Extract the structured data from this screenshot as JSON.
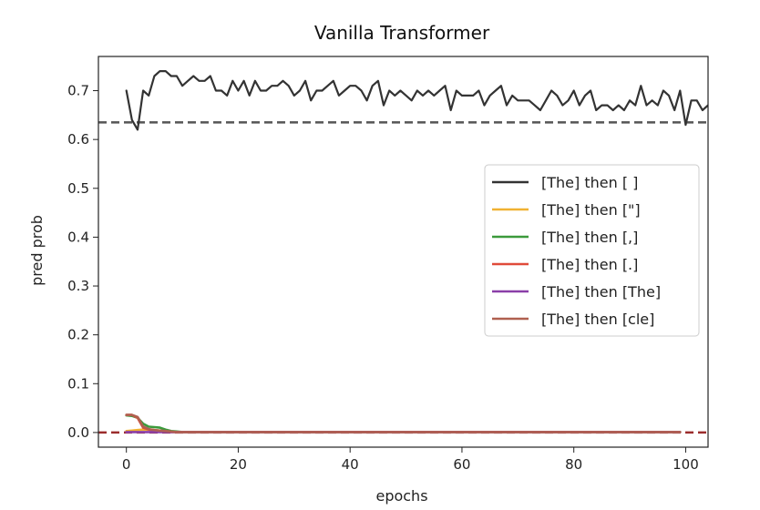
{
  "chart_data": {
    "type": "line",
    "title": "Vanilla Transformer",
    "xlabel": "epochs",
    "ylabel": "pred prob",
    "xlim": [
      -5,
      104
    ],
    "ylim": [
      -0.03,
      0.77
    ],
    "xticks": [
      0,
      20,
      40,
      60,
      80,
      100
    ],
    "yticks": [
      0.0,
      0.1,
      0.2,
      0.3,
      0.4,
      0.5,
      0.6,
      0.7
    ],
    "ytick_labels": [
      "0.0",
      "0.1",
      "0.2",
      "0.3",
      "0.4",
      "0.5",
      "0.6",
      "0.7"
    ],
    "grid": false,
    "legend_position": "center-right",
    "hlines": [
      {
        "y": 0.635,
        "color": "#555555",
        "style": "dashed"
      },
      {
        "y": 0.0,
        "color": "#9b2d2d",
        "style": "dashed"
      }
    ],
    "series": [
      {
        "name": "[The] then [ ]",
        "color": "#333333",
        "y": [
          0.7,
          0.64,
          0.62,
          0.7,
          0.69,
          0.73,
          0.74,
          0.74,
          0.73,
          0.73,
          0.71,
          0.72,
          0.73,
          0.72,
          0.72,
          0.73,
          0.7,
          0.7,
          0.69,
          0.72,
          0.7,
          0.72,
          0.69,
          0.72,
          0.7,
          0.7,
          0.71,
          0.71,
          0.72,
          0.71,
          0.69,
          0.7,
          0.72,
          0.68,
          0.7,
          0.7,
          0.71,
          0.72,
          0.69,
          0.7,
          0.71,
          0.71,
          0.7,
          0.68,
          0.71,
          0.72,
          0.67,
          0.7,
          0.69,
          0.7,
          0.69,
          0.68,
          0.7,
          0.69,
          0.7,
          0.69,
          0.7,
          0.71,
          0.66,
          0.7,
          0.69,
          0.69,
          0.69,
          0.7,
          0.67,
          0.69,
          0.7,
          0.71,
          0.67,
          0.69,
          0.68,
          0.68,
          0.68,
          0.67,
          0.66,
          0.68,
          0.7,
          0.69,
          0.67,
          0.68,
          0.7,
          0.67,
          0.69,
          0.7,
          0.66,
          0.67,
          0.67,
          0.66,
          0.67,
          0.66,
          0.68,
          0.67,
          0.71,
          0.67,
          0.68,
          0.67,
          0.7,
          0.69,
          0.66,
          0.7,
          0.63,
          0.68,
          0.68,
          0.66,
          0.67
        ]
      },
      {
        "name": "[The] then [\"]",
        "color": "#f0b232",
        "y": [
          0.003,
          0.004,
          0.005,
          0.006,
          0.006,
          0.005,
          0.004,
          0.003,
          0.002,
          0.001,
          0.001
        ]
      },
      {
        "name": "[The] then [,]",
        "color": "#3c9a3c",
        "y": [
          0.035,
          0.034,
          0.03,
          0.018,
          0.012,
          0.011,
          0.01,
          0.006,
          0.003,
          0.002,
          0.001,
          0.001
        ]
      },
      {
        "name": "[The] then [.]",
        "color": "#e04b3a",
        "y": [
          0.036,
          0.036,
          0.03,
          0.01,
          0.006,
          0.004,
          0.003,
          0.002,
          0.001,
          0.001
        ]
      },
      {
        "name": "[The] then [The]",
        "color": "#8a3fa8",
        "y": [
          0.001,
          0.001,
          0.001,
          0.001,
          0.001,
          0.001
        ]
      },
      {
        "name": "[The] then [cle]",
        "color": "#b06050",
        "y": [
          0.036,
          0.036,
          0.032,
          0.012,
          0.007,
          0.005,
          0.004,
          0.003,
          0.002,
          0.001,
          0.001
        ]
      }
    ]
  }
}
